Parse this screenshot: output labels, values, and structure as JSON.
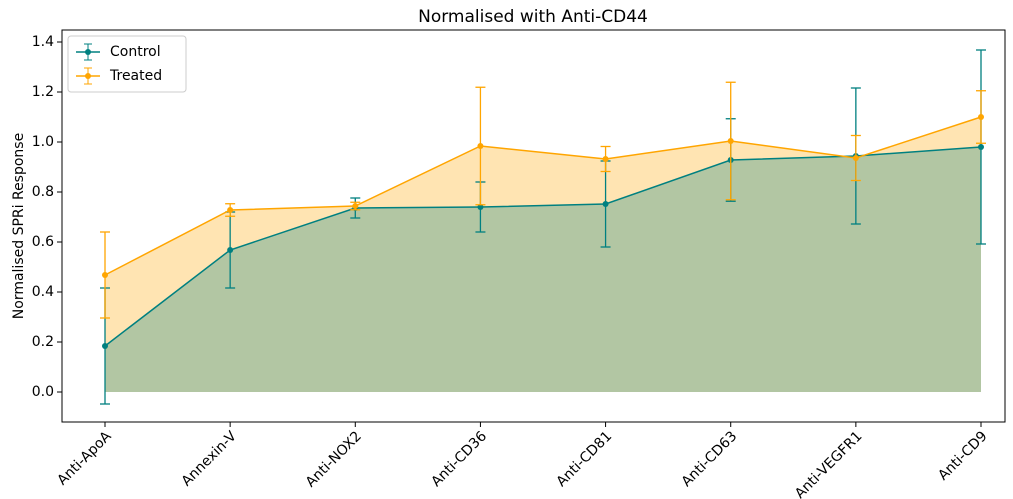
{
  "chart_data": {
    "type": "line",
    "title": "Normalised with Anti-CD44",
    "y_label": "Normalised SPRi Response",
    "categories": [
      "Anti-ApoA",
      "Annexin-V",
      "Anti-NOX2",
      "Anti-CD36",
      "Anti-CD81",
      "Anti-CD63",
      "Anti-VEGFR1",
      "Anti-CD9"
    ],
    "series": [
      {
        "name": "Control",
        "color": "#008080",
        "values": [
          0.184,
          0.568,
          0.736,
          0.74,
          0.752,
          0.928,
          0.944,
          0.98
        ],
        "errors": [
          0.232,
          0.152,
          0.04,
          0.1,
          0.172,
          0.165,
          0.272,
          0.388
        ]
      },
      {
        "name": "Treated",
        "color": "#ffa500",
        "values": [
          0.468,
          0.728,
          0.744,
          0.984,
          0.932,
          1.004,
          0.936,
          1.1
        ],
        "errors": [
          0.172,
          0.025,
          0.015,
          0.235,
          0.05,
          0.235,
          0.09,
          0.105
        ]
      }
    ],
    "ylim": [
      -0.12,
      1.448
    ],
    "yticks": [
      {
        "value": 0,
        "label": "0.0"
      },
      0.2,
      0.4,
      0.6,
      0.8,
      {
        "value": 1,
        "label": "1.0"
      },
      1.2,
      1.4
    ],
    "fill_area": true,
    "legend": "upper left"
  }
}
